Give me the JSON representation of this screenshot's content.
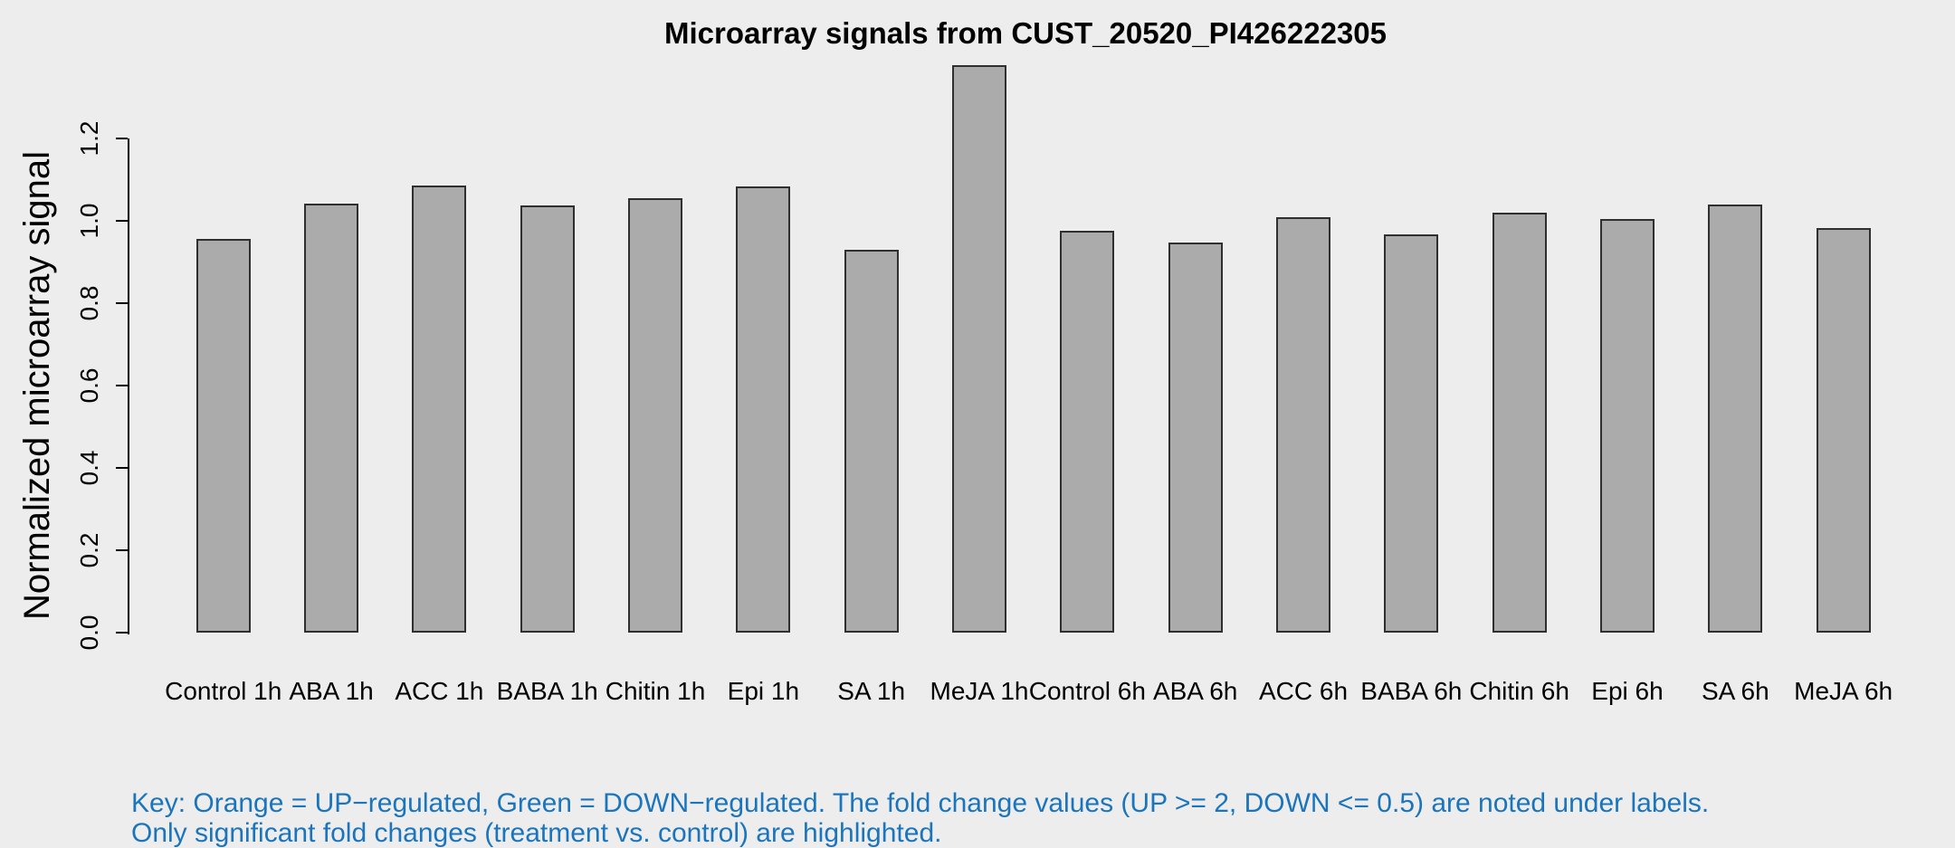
{
  "chart_data": {
    "type": "bar",
    "title": "Microarray signals from CUST_20520_PI426222305",
    "ylabel": "Normalized microarray signal",
    "xlabel": "",
    "categories": [
      "Control 1h",
      "ABA 1h",
      "ACC 1h",
      "BABA 1h",
      "Chitin 1h",
      "Epi 1h",
      "SA 1h",
      "MeJA 1h",
      "Control 6h",
      "ABA 6h",
      "ACC 6h",
      "BABA 6h",
      "Chitin 6h",
      "Epi 6h",
      "SA 6h",
      "MeJA 6h"
    ],
    "values": [
      0.957,
      1.041,
      1.085,
      1.037,
      1.055,
      1.083,
      0.93,
      1.379,
      0.975,
      0.947,
      1.008,
      0.967,
      1.02,
      1.005,
      1.039,
      0.982
    ],
    "y_ticks": [
      "0.0",
      "0.2",
      "0.4",
      "0.6",
      "0.8",
      "1.0",
      "1.2"
    ],
    "ylim": [
      0,
      1.2
    ],
    "grid": false,
    "legend": "none",
    "colors": {
      "background": "#EDEDED",
      "bar_fill": "#ABABAB",
      "bar_border": "#2F2F2F",
      "axis": "#000000",
      "note_text": "#1B75BC"
    },
    "note_lines": [
      "Key: Orange = UP−regulated, Green = DOWN−regulated. The fold change values (UP >= 2, DOWN <= 0.5) are noted under labels.",
      "Only significant fold changes (treatment vs. control) are highlighted."
    ]
  }
}
